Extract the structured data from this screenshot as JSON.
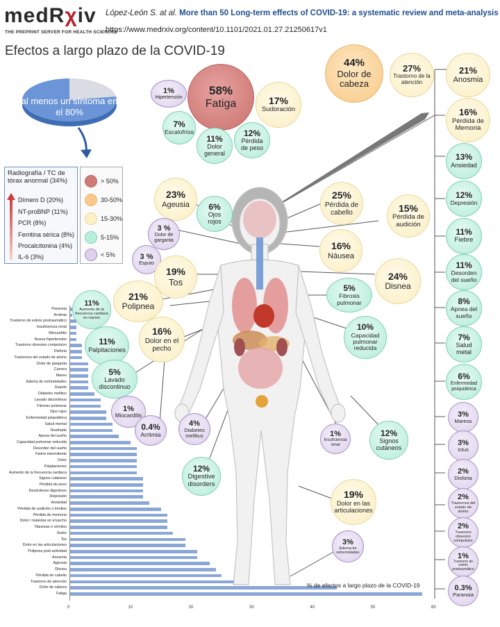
{
  "header": {
    "logo_main": "medR",
    "logo_accent": "χ",
    "logo_end": "iv",
    "tagline": "THE PREPRINT SERVER FOR HEALTH SCIENCES",
    "authors": "López-León S. at al.",
    "paper_title": "More than 50 Long-term effects of COVID-19: a systematic review and meta-analysis",
    "url": "https://www.medrxiv.org/content/10.1101/2021.01.27.21250617v1"
  },
  "title": "Efectos a largo plazo de la COVID-19",
  "pie": {
    "label": "al menos un síntoma en el 80%",
    "value": 80
  },
  "lab_legend": {
    "title": "Radiografía / TC de tórax anormal (34%)",
    "items": [
      "Dímero D (20%)",
      "NT-proBNP (11%)",
      "PCR (8%)",
      "Ferritina sérica (8%)",
      "Procalcitonina (4%)",
      "IL-6 (3%)"
    ]
  },
  "scale_legend": [
    {
      "label": "> 50%",
      "color": "#cf7c78"
    },
    {
      "label": "30-50%",
      "color": "#f8c98a"
    },
    {
      "label": "15-30%",
      "color": "#fdf0c8"
    },
    {
      "label": "5-15%",
      "color": "#b9eedb"
    },
    {
      "label": "< 5%",
      "color": "#ddd1ec"
    }
  ],
  "bubbles": {
    "fatiga": {
      "pct": "58%",
      "label": "Fatiga"
    },
    "hipertension": {
      "pct": "1%",
      "label": "Hipertensión"
    },
    "sudoracion": {
      "pct": "17%",
      "label": "Sudoración"
    },
    "escalofrios": {
      "pct": "7%",
      "label": "Escalofríos"
    },
    "dolor_general": {
      "pct": "11%",
      "label": "Dolor general"
    },
    "perdida_peso": {
      "pct": "12%",
      "label": "Pérdida de peso"
    },
    "dolor_cabeza": {
      "pct": "44%",
      "label": "Dolor de cabeza"
    },
    "trastorno_atencion": {
      "pct": "27%",
      "label": "Trastorno de la atención"
    },
    "anosmia": {
      "pct": "21%",
      "label": "Anosmia"
    },
    "perdida_memoria": {
      "pct": "16%",
      "label": "Pérdida de Memoria"
    },
    "ansiedad": {
      "pct": "13%",
      "label": "Ansiedad"
    },
    "depresion": {
      "pct": "12%",
      "label": "Depresión"
    },
    "fiebre": {
      "pct": "11%",
      "label": "Fiebre"
    },
    "desorden_sueno": {
      "pct": "11%",
      "label": "Desorden del sueño"
    },
    "apnea": {
      "pct": "8%",
      "label": "Apnea del sueño"
    },
    "salud_metal": {
      "pct": "7%",
      "label": "Salud metal"
    },
    "enfermedad_psiq": {
      "pct": "6%",
      "label": "Enfermedad psiquiátrica"
    },
    "mareos": {
      "pct": "3%",
      "label": "Mareos"
    },
    "ictus": {
      "pct": "3%",
      "label": "Ictus"
    },
    "disforia": {
      "pct": "2%",
      "label": "Disforia"
    },
    "trastornos_animo": {
      "pct": "2%",
      "label": "Trastornos del estado de ánimo"
    },
    "toc": {
      "pct": "2%",
      "label": "Trastorno obsesivo compulsivo"
    },
    "estres_post": {
      "pct": "1%",
      "label": "Trastorno de estrés postraumático"
    },
    "paranoia": {
      "pct": "0.3%",
      "label": "Paranoia"
    },
    "ageusia": {
      "pct": "23%",
      "label": "Ageusia"
    },
    "ojos_rojos": {
      "pct": "6%",
      "label": "Ojos rojos"
    },
    "perdida_cabello": {
      "pct": "25%",
      "label": "Pérdida de cabello"
    },
    "perdida_audicion": {
      "pct": "15%",
      "label": "Pérdida de audición"
    },
    "dolor_garganta": {
      "pct": "3 %",
      "label": "Dolor de garganta"
    },
    "esputo": {
      "pct": "3 %",
      "label": "Esputo"
    },
    "nausea": {
      "pct": "16%",
      "label": "Náusea"
    },
    "tos": {
      "pct": "19%",
      "label": "Tos"
    },
    "disnea": {
      "pct": "24%",
      "label": "Disnea"
    },
    "fibrosis": {
      "pct": "5%",
      "label": "Fibrosis pulmonar"
    },
    "frecuencia_cardiaca": {
      "pct": "11%",
      "label": "Aumento de la frecuencia cardiaca en reposo"
    },
    "polipnea": {
      "pct": "21%",
      "label": "Polipnea"
    },
    "capacidad_pulmonar": {
      "pct": "10%",
      "label": "Capacidad pulmonar reducida"
    },
    "palpitaciones": {
      "pct": "11%",
      "label": "Palpitaciones"
    },
    "dolor_pecho": {
      "pct": "16%",
      "label": "Dolor en el pecho"
    },
    "lavado": {
      "pct": "5%",
      "label": "Lavado discontinuo"
    },
    "miocarditis": {
      "pct": "1%",
      "label": "Miocarditis"
    },
    "arritmia": {
      "pct": "0.4%",
      "label": "Arritmia"
    },
    "diabetes": {
      "pct": "4%",
      "label": "Diabetes mellitus"
    },
    "insuf_renal": {
      "pct": "1%",
      "label": "Insuficiencia renal"
    },
    "signos_cutaneos": {
      "pct": "12%",
      "label": "Signos cutáneos"
    },
    "digestive": {
      "pct": "12%",
      "label": "Digestive disorders"
    },
    "articulaciones": {
      "pct": "19%",
      "label": "Dolor en las articulaciones"
    },
    "edema": {
      "pct": "3%",
      "label": "Edema de extremidades"
    }
  },
  "chart_data": {
    "type": "bar",
    "orientation": "horizontal",
    "xlabel": "% de efectos a largo plazo de la COVID-19",
    "xlim": [
      0,
      60
    ],
    "xticks": [
      "0",
      "10",
      "20",
      "30",
      "40",
      "50",
      "60"
    ],
    "categories": [
      "Paranoia",
      "Arritmia",
      "Trastorno de estrés postraumático",
      "Insuficiencia renal",
      "Miocarditis",
      "Nueva hipertensión",
      "Trastorno obsesivo compulsivo",
      "Disforia",
      "Trastornos del estado de ánimo",
      "Dolor de garganta",
      "Carrera",
      "Mareo",
      "Edema de extremidades",
      "Esputo",
      "Diabetes mellitus",
      "Lavado discontinuo",
      "Fibrosis pulmonar",
      "Ojos rojos",
      "Enfermedad psiquiátrica",
      "Salud mental",
      "Resfriado",
      "Apnea del sueño",
      "Capacidad pulmonar reducida",
      "Desorden del sueño",
      "Fiebre intermitente",
      "Dolor",
      "Palpitaciones",
      "Aumento de la frecuencia cardiaca",
      "Signos cutáneos",
      "Pérdida de peso",
      "Desórdenes digestivos",
      "Depresión",
      "Ansiedad",
      "Pérdida de audición o tinnitus",
      "Pérdida de memoria",
      "Dolor / malestar en el pecho",
      "Náuseas o vómitos",
      "Sudor",
      "Tos",
      "Dolor en las articulaciones",
      "Polipnea post-actividad",
      "Anosmia",
      "Ageusia",
      "Disnea",
      "Pérdida de cabello",
      "Trastorno de atención",
      "Dolor de cabeza",
      "Fatiga"
    ],
    "values": [
      0.3,
      0.4,
      1,
      1,
      1,
      1,
      2,
      2,
      2,
      3,
      3,
      3,
      3,
      3,
      4,
      5,
      5,
      6,
      6,
      7,
      7,
      8,
      10,
      11,
      11,
      11,
      11,
      11,
      12,
      12,
      12,
      12,
      13,
      15,
      16,
      16,
      16,
      17,
      19,
      19,
      21,
      21,
      23,
      24,
      25,
      27,
      44,
      58
    ]
  }
}
